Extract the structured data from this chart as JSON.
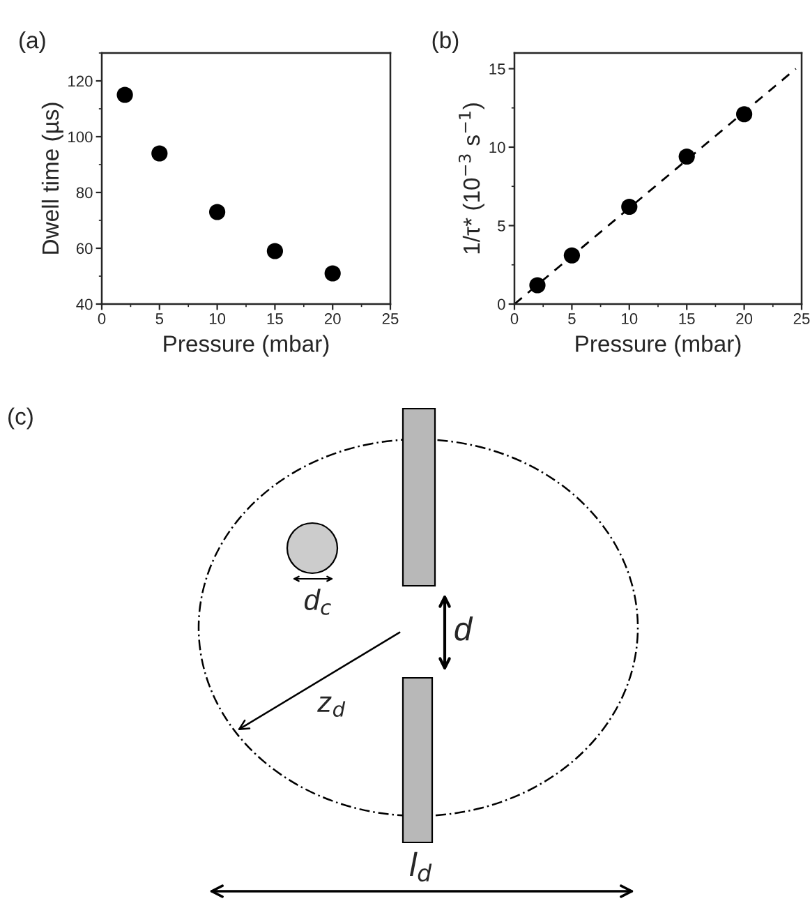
{
  "chart_data": [
    {
      "type": "scatter",
      "title": "(a)",
      "xlabel": "Pressure (mbar)",
      "ylabel": "Dwell time (µs)",
      "x": [
        2,
        5,
        10,
        15,
        20
      ],
      "series": [
        {
          "color": "#000000",
          "values": [
            115,
            94,
            73,
            59,
            51
          ]
        }
      ],
      "xlim": [
        0,
        25
      ],
      "xticks": [
        0,
        5,
        10,
        15,
        20,
        25
      ],
      "ylim": [
        40,
        130
      ],
      "yticks": [
        40,
        60,
        80,
        100,
        120
      ],
      "marker": "circle",
      "grid": false,
      "legend": false
    },
    {
      "type": "scatter",
      "title": "(b)",
      "xlabel": "Pressure (mbar)",
      "ylabel": "1/τ* (10$^{−3}$ s$^{−1}$)",
      "x": [
        2,
        5,
        10,
        15,
        20
      ],
      "series": [
        {
          "color": "#000000",
          "values": [
            1.2,
            3.1,
            6.2,
            9.4,
            12.1
          ]
        },
        {
          "type": "line",
          "color": "#000000",
          "x": [
            0,
            24.5
          ],
          "values": [
            0,
            15
          ],
          "line_style": "dashed",
          "marker": "none"
        }
      ],
      "xlim": [
        0,
        25
      ],
      "xticks": [
        0,
        5,
        10,
        15,
        20,
        25
      ],
      "ylim": [
        0,
        16
      ],
      "yticks": [
        0,
        5,
        10,
        15
      ],
      "marker": "circle",
      "grid": false,
      "legend": false
    },
    {
      "type": "other",
      "title": "(c)",
      "annotations": [
        "d$_{c}$",
        "d",
        "z$_{d}$",
        "l$_{d}$"
      ]
    }
  ]
}
